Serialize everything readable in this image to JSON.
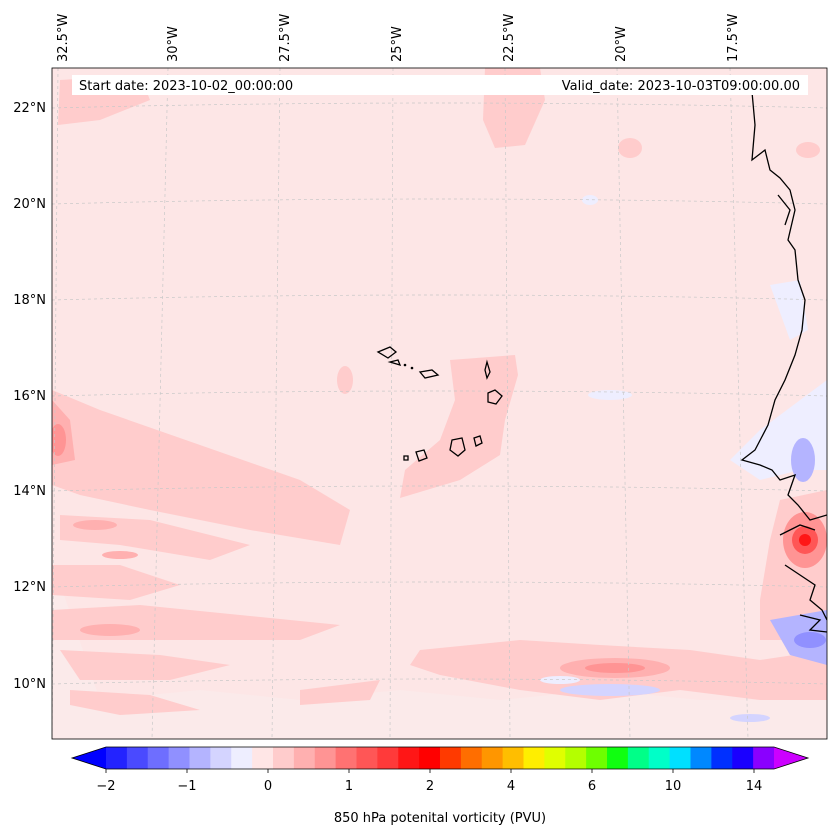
{
  "map": {
    "start_date": "Start date: 2023-10-02_00:00:00",
    "valid_date": "Valid_date: 2023-10-03T09:00:00.00",
    "lon_labels": [
      "32.5°W",
      "30°W",
      "27.5°W",
      "25°W",
      "22.5°W",
      "20°W",
      "17.5°W"
    ],
    "lat_labels": [
      "22°N",
      "20°N",
      "18°N",
      "16°N",
      "14°N",
      "12°N",
      "10°N"
    ],
    "background_color": "#fde6e6"
  },
  "colorbar": {
    "label": "850 hPa potenital vorticity (PVU)",
    "tick_labels": [
      "−2",
      "−1",
      "0",
      "1",
      "2",
      "4",
      "6",
      "10",
      "14"
    ],
    "colors": [
      "#0000ff",
      "#2323ff",
      "#4a4aff",
      "#6e6eff",
      "#9090ff",
      "#b4b4ff",
      "#d4d4ff",
      "#eeeeff",
      "#ffe6e6",
      "#ffcccc",
      "#ffb0b0",
      "#ff9494",
      "#ff7272",
      "#ff5656",
      "#ff3a3a",
      "#ff1616",
      "#ff0000",
      "#ff3a00",
      "#ff6e00",
      "#ff9600",
      "#ffbe00",
      "#ffee00",
      "#e0ff00",
      "#b4ff00",
      "#6eff00",
      "#10ff10",
      "#00ff88",
      "#00ffc8",
      "#00e0ff",
      "#0088ff",
      "#0030ff",
      "#1a00ff",
      "#8a00ff",
      "#cc00ff"
    ]
  }
}
